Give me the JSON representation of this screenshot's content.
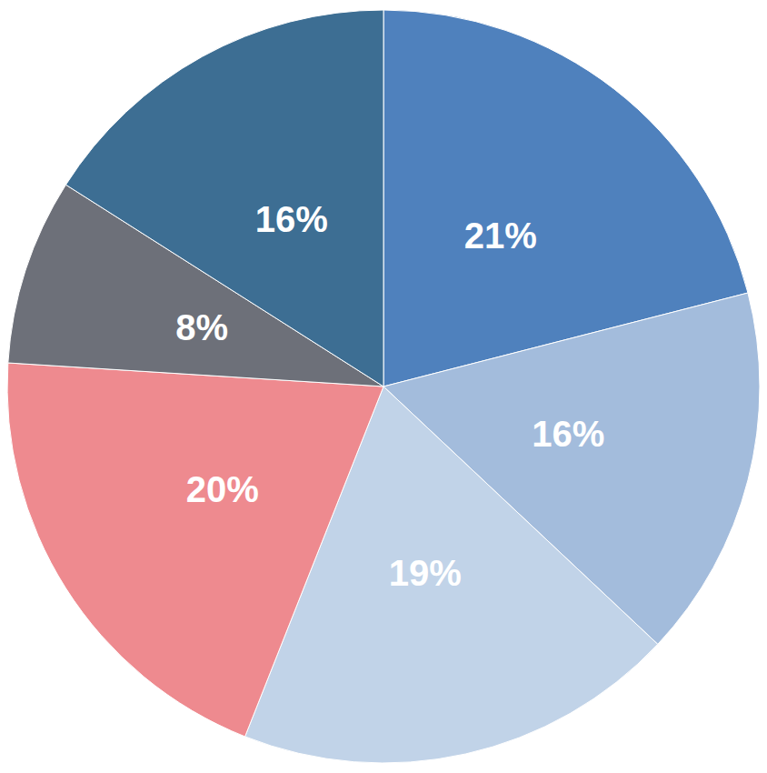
{
  "chart_data": {
    "type": "pie",
    "values": [
      21,
      16,
      19,
      20,
      8,
      16
    ],
    "value_labels": [
      "21%",
      "16%",
      "19%",
      "20%",
      "8%",
      "16%"
    ],
    "colors": [
      "#4f81bd",
      "#a3bcdc",
      "#c1d3e8",
      "#ee8a8f",
      "#6d7079",
      "#3d6e93"
    ],
    "data_labels": true
  }
}
